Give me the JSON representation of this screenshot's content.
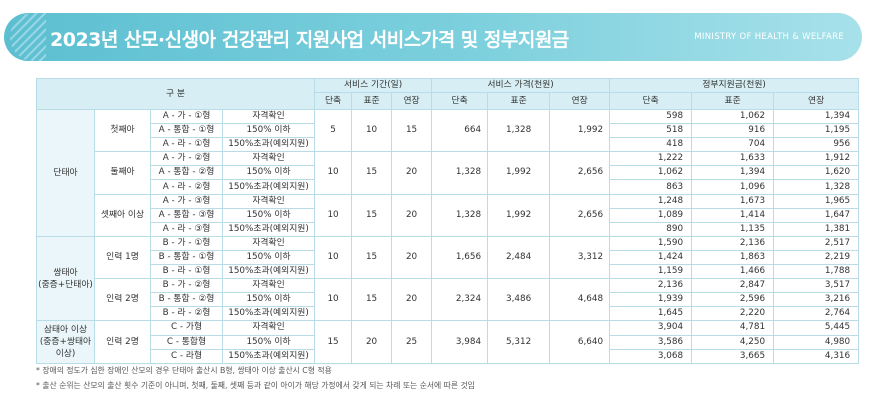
{
  "header": {
    "title": "2023년 산모·신생아 건강관리 지원사업 서비스가격 및 정부지원금",
    "ministry": "MINISTRY OF HEALTH & WELFARE"
  },
  "table": {
    "head": {
      "gubun": "구 분",
      "period": "서비스 기간(일)",
      "price": "서비스 가격(천원)",
      "subsidy": "정부지원금(천원)",
      "sub": [
        "단축",
        "표준",
        "연장",
        "단축",
        "표준",
        "연장",
        "단축",
        "표준",
        "연장"
      ]
    },
    "groups": [
      {
        "label": "단태아",
        "subgroups": [
          {
            "label": "첫째아",
            "days": [
              "5",
              "10",
              "15"
            ],
            "price": [
              "664",
              "1,328",
              "1,992"
            ],
            "rows": [
              {
                "code": "A - 가 - ①형",
                "income": "자격확인",
                "sub": [
                  "598",
                  "1,062",
                  "1,394"
                ]
              },
              {
                "code": "A - 통합 - ①형",
                "income": "150% 이하",
                "sub": [
                  "518",
                  "916",
                  "1,195"
                ]
              },
              {
                "code": "A - 라 - ①형",
                "income": "150%초과(예외지원)",
                "sub": [
                  "418",
                  "704",
                  "956"
                ]
              }
            ]
          },
          {
            "label": "둘째아",
            "days": [
              "10",
              "15",
              "20"
            ],
            "price": [
              "1,328",
              "1,992",
              "2,656"
            ],
            "rows": [
              {
                "code": "A - 가 - ②형",
                "income": "자격확인",
                "sub": [
                  "1,222",
                  "1,633",
                  "1,912"
                ]
              },
              {
                "code": "A - 통합 - ②형",
                "income": "150% 이하",
                "sub": [
                  "1,062",
                  "1,394",
                  "1,620"
                ]
              },
              {
                "code": "A - 라 - ②형",
                "income": "150%초과(예외지원)",
                "sub": [
                  "863",
                  "1,096",
                  "1,328"
                ]
              }
            ]
          },
          {
            "label": "셋째아 이상",
            "days": [
              "10",
              "15",
              "20"
            ],
            "price": [
              "1,328",
              "1,992",
              "2,656"
            ],
            "rows": [
              {
                "code": "A - 가 - ③형",
                "income": "자격확인",
                "sub": [
                  "1,248",
                  "1,673",
                  "1,965"
                ]
              },
              {
                "code": "A - 통합 - ③형",
                "income": "150% 이하",
                "sub": [
                  "1,089",
                  "1,414",
                  "1,647"
                ]
              },
              {
                "code": "A - 라 - ③형",
                "income": "150%초과(예외지원)",
                "sub": [
                  "890",
                  "1,135",
                  "1,381"
                ]
              }
            ]
          }
        ]
      },
      {
        "label": "쌍태아\n(중증+단태아)",
        "subgroups": [
          {
            "label": "인력 1명",
            "days": [
              "10",
              "15",
              "20"
            ],
            "price": [
              "1,656",
              "2,484",
              "3,312"
            ],
            "rows": [
              {
                "code": "B - 가 - ①형",
                "income": "자격확인",
                "sub": [
                  "1,590",
                  "2,136",
                  "2,517"
                ]
              },
              {
                "code": "B - 통합 - ①형",
                "income": "150% 이하",
                "sub": [
                  "1,424",
                  "1,863",
                  "2,219"
                ]
              },
              {
                "code": "B - 라 - ①형",
                "income": "150%초과(예외지원)",
                "sub": [
                  "1,159",
                  "1,466",
                  "1,788"
                ]
              }
            ]
          },
          {
            "label": "인력 2명",
            "days": [
              "10",
              "15",
              "20"
            ],
            "price": [
              "2,324",
              "3,486",
              "4,648"
            ],
            "rows": [
              {
                "code": "B - 가 - ②형",
                "income": "자격확인",
                "sub": [
                  "2,136",
                  "2,847",
                  "3,517"
                ]
              },
              {
                "code": "B - 통합 - ②형",
                "income": "150% 이하",
                "sub": [
                  "1,939",
                  "2,596",
                  "3,216"
                ]
              },
              {
                "code": "B - 라 - ②형",
                "income": "150%초과(예외지원)",
                "sub": [
                  "1,645",
                  "2,220",
                  "2,764"
                ]
              }
            ]
          }
        ]
      },
      {
        "label": "삼태아 이상\n(중증+쌍태아\n이상)",
        "subgroups": [
          {
            "label": "인력 2명",
            "days": [
              "15",
              "20",
              "25"
            ],
            "price": [
              "3,984",
              "5,312",
              "6,640"
            ],
            "rows": [
              {
                "code": "C - 가형",
                "income": "자격확인",
                "sub": [
                  "3,904",
                  "4,781",
                  "5,445"
                ]
              },
              {
                "code": "C - 통합형",
                "income": "150% 이하",
                "sub": [
                  "3,586",
                  "4,250",
                  "4,980"
                ]
              },
              {
                "code": "C - 라형",
                "income": "150%초과(예외지원)",
                "sub": [
                  "3,068",
                  "3,665",
                  "4,316"
                ]
              }
            ]
          }
        ]
      }
    ]
  },
  "notes": [
    "* 장애의 정도가 심한 장애인 산모의 경우 단태아 출산시 B형, 쌍태아 이상 출산시 C형 적용",
    "* 출산 순위는 산모의 출산 횟수 기준이 아니며, 첫째, 둘째, 셋째 등과 같이 아이가 해당 가정에서 갖게 되는 차례 또는 순서에 따른 것임"
  ]
}
